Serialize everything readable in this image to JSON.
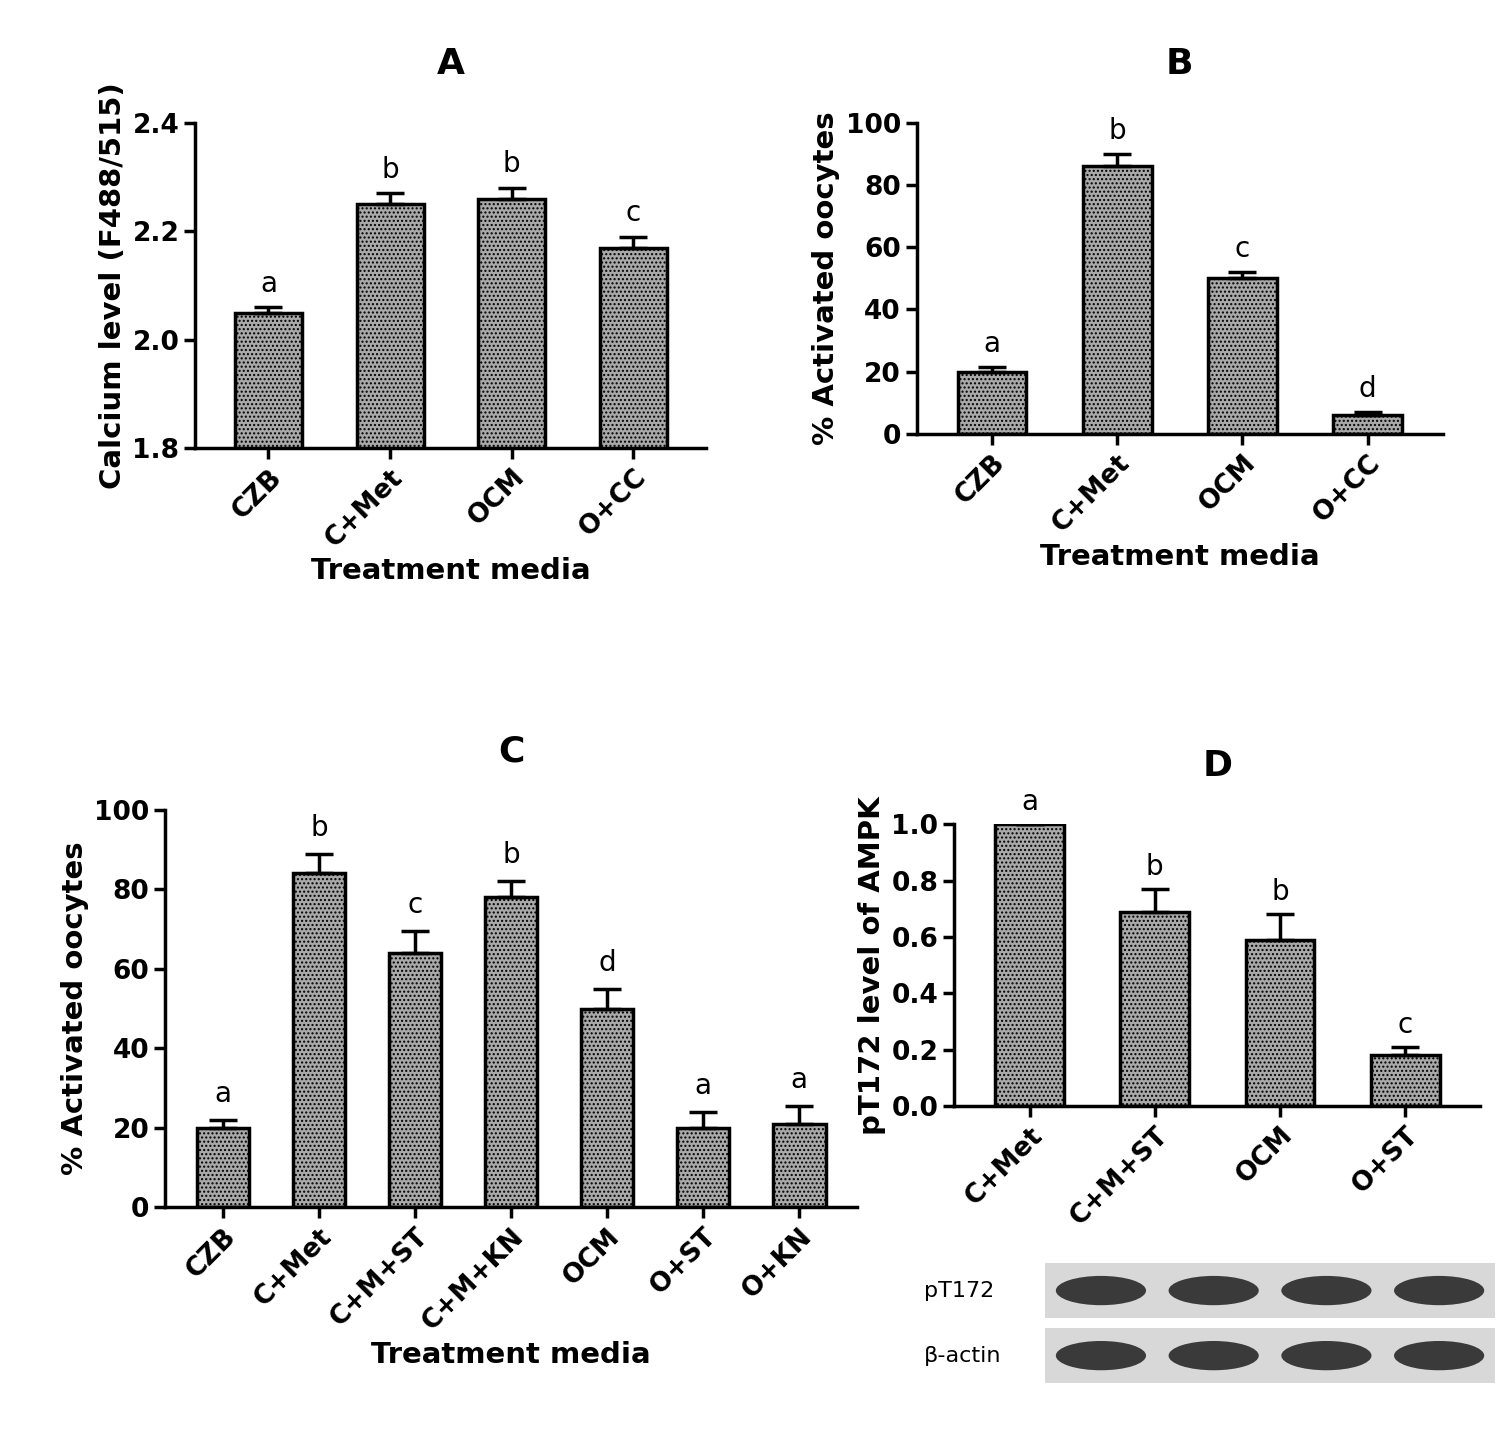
{
  "chart_data": [
    {
      "type": "bar",
      "title": "A",
      "ylabel": "Calcium level (F488/515)",
      "xlabel": "Treatment media",
      "categories": [
        "CZB",
        "C+Met",
        "OCM",
        "O+CC"
      ],
      "values": [
        2.05,
        2.25,
        2.26,
        2.17
      ],
      "errors": [
        0.01,
        0.02,
        0.02,
        0.02
      ],
      "annotations": [
        "a",
        "b",
        "b",
        "c"
      ],
      "color": "#a9a9a9",
      "ylim": [
        1.8,
        2.4
      ],
      "yticks": [
        1.8,
        2.0,
        2.2,
        2.4
      ]
    },
    {
      "type": "bar",
      "title": "B",
      "ylabel": "% Activated oocytes",
      "xlabel": "Treatment media",
      "categories": [
        "CZB",
        "C+Met",
        "OCM",
        "O+CC"
      ],
      "values": [
        20,
        86,
        50,
        6
      ],
      "errors": [
        1.5,
        4,
        2,
        1
      ],
      "annotations": [
        "a",
        "b",
        "c",
        "d"
      ],
      "color": "#a9a9a9",
      "ylim": [
        0,
        100
      ],
      "yticks": [
        0,
        20,
        40,
        60,
        80,
        100
      ]
    },
    {
      "type": "bar",
      "title": "C",
      "ylabel": "% Activated oocytes",
      "xlabel": "Treatment media",
      "categories": [
        "CZB",
        "C+Met",
        "C+M+ST",
        "C+M+KN",
        "OCM",
        "O+ST",
        "O+KN"
      ],
      "values": [
        20,
        84,
        64,
        78,
        50,
        20,
        21
      ],
      "errors": [
        2,
        5,
        5.5,
        4,
        5,
        4,
        4.5
      ],
      "annotations": [
        "a",
        "b",
        "c",
        "b",
        "d",
        "a",
        "a"
      ],
      "color": "#a9a9a9",
      "ylim": [
        0,
        100
      ],
      "yticks": [
        0,
        20,
        40,
        60,
        80,
        100
      ]
    },
    {
      "type": "bar",
      "title": "D",
      "ylabel": "pT172 level of AMPK",
      "categories": [
        "C+Met",
        "C+M+ST",
        "OCM",
        "O+ST"
      ],
      "values": [
        1.0,
        0.69,
        0.59,
        0.18
      ],
      "errors": [
        0,
        0.08,
        0.09,
        0.03
      ],
      "annotations": [
        "a",
        "b",
        "b",
        "c"
      ],
      "color": "#a9a9a9",
      "ylim": [
        0,
        1.0
      ],
      "yticks": [
        0.0,
        0.2,
        0.4,
        0.6,
        0.8,
        1.0
      ],
      "blot": [
        "pT172",
        "β-actin"
      ]
    }
  ]
}
